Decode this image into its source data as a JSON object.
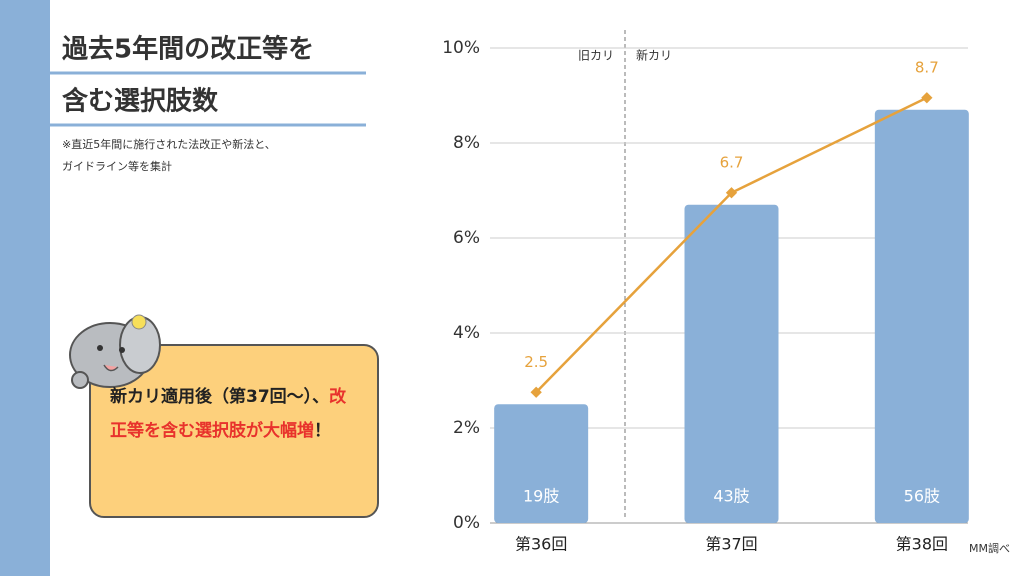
{
  "slide": {
    "title_lines": [
      "過去5年間の改正等を",
      "含む選択肢数"
    ],
    "note_lines": [
      "※直近5年間に施行された法改正や新法と、",
      "ガイドライン等を集計"
    ],
    "callout": {
      "lead": "新カリ適用後（第37回～）、",
      "highlight": "改正等を含む選択肢が大幅増",
      "tail": "！"
    }
  },
  "chart_data": {
    "type": "bar",
    "categories": [
      "第36回",
      "第37回",
      "第38回"
    ],
    "series": [
      {
        "type": "bar",
        "color": "#8ab0d8",
        "values": [
          2.5,
          6.7,
          8.7
        ],
        "bar_texts": [
          "19肢",
          "43肢",
          "56肢"
        ]
      },
      {
        "type": "line",
        "color": "#e6a23c",
        "values": [
          2.5,
          6.7,
          8.7
        ]
      }
    ],
    "ylim": [
      0,
      10
    ],
    "yticks": [
      {
        "value": 0,
        "label": "0%"
      },
      {
        "value": 2,
        "label": "2%"
      },
      {
        "value": 4,
        "label": "4%"
      },
      {
        "value": 6,
        "label": "6%"
      },
      {
        "value": 8,
        "label": "8%"
      },
      {
        "value": 10,
        "label": "10%"
      }
    ],
    "grid": true,
    "annotations": [
      "旧カリ",
      "新カリ"
    ],
    "source": "MM調べ"
  }
}
